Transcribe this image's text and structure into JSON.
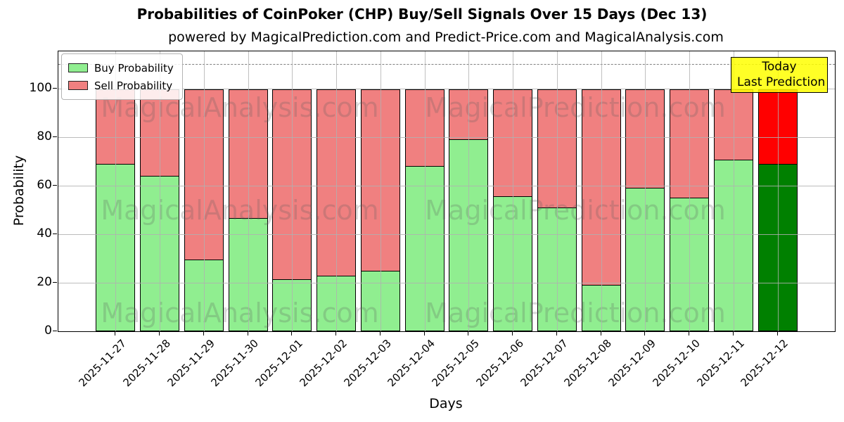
{
  "chart_data": {
    "type": "bar",
    "stacked": true,
    "title": "Probabilities of CoinPoker (CHP) Buy/Sell Signals Over 15 Days (Dec 13)",
    "subtitle": "powered by MagicalPrediction.com and Predict-Price.com and MagicalAnalysis.com",
    "xlabel": "Days",
    "ylabel": "Probability",
    "categories": [
      "2025-11-27",
      "2025-11-28",
      "2025-11-29",
      "2025-11-30",
      "2025-12-01",
      "2025-12-02",
      "2025-12-03",
      "2025-12-04",
      "2025-12-05",
      "2025-12-06",
      "2025-12-07",
      "2025-12-08",
      "2025-12-09",
      "2025-12-10",
      "2025-12-11",
      "2025-12-12"
    ],
    "series": [
      {
        "name": "Buy Probability",
        "color": "#90EE90",
        "today_color": "#008000",
        "values": [
          69,
          64,
          29.5,
          46.5,
          21.5,
          23,
          25,
          68,
          79,
          55.5,
          51,
          19,
          59,
          55,
          70.5,
          69
        ]
      },
      {
        "name": "Sell Probability",
        "color": "#F08080",
        "today_color": "#FF0000",
        "values": [
          31,
          36,
          70.5,
          53.5,
          78.5,
          77,
          75,
          32,
          21,
          44.5,
          49,
          81,
          41,
          45,
          29.5,
          31
        ]
      }
    ],
    "yticks": [
      0,
      20,
      40,
      60,
      80,
      100
    ],
    "ylim": [
      0,
      115.2
    ],
    "dashed_line_y": 110,
    "grid": true,
    "legend_position": "upper left",
    "bar_edge_color": "#000000",
    "grid_color": "#b0b0b0"
  },
  "legend": {
    "items": [
      {
        "label": "Buy Probability",
        "color": "#90EE90"
      },
      {
        "label": "Sell Probability",
        "color": "#F08080"
      }
    ]
  },
  "annotation": {
    "line1": "Today",
    "line2": "Last Prediction",
    "bg_color": "#FFFF00"
  },
  "watermarks": {
    "left_text": "MagicalAnalysis.com",
    "right_text": "MagicalPrediction.com"
  }
}
